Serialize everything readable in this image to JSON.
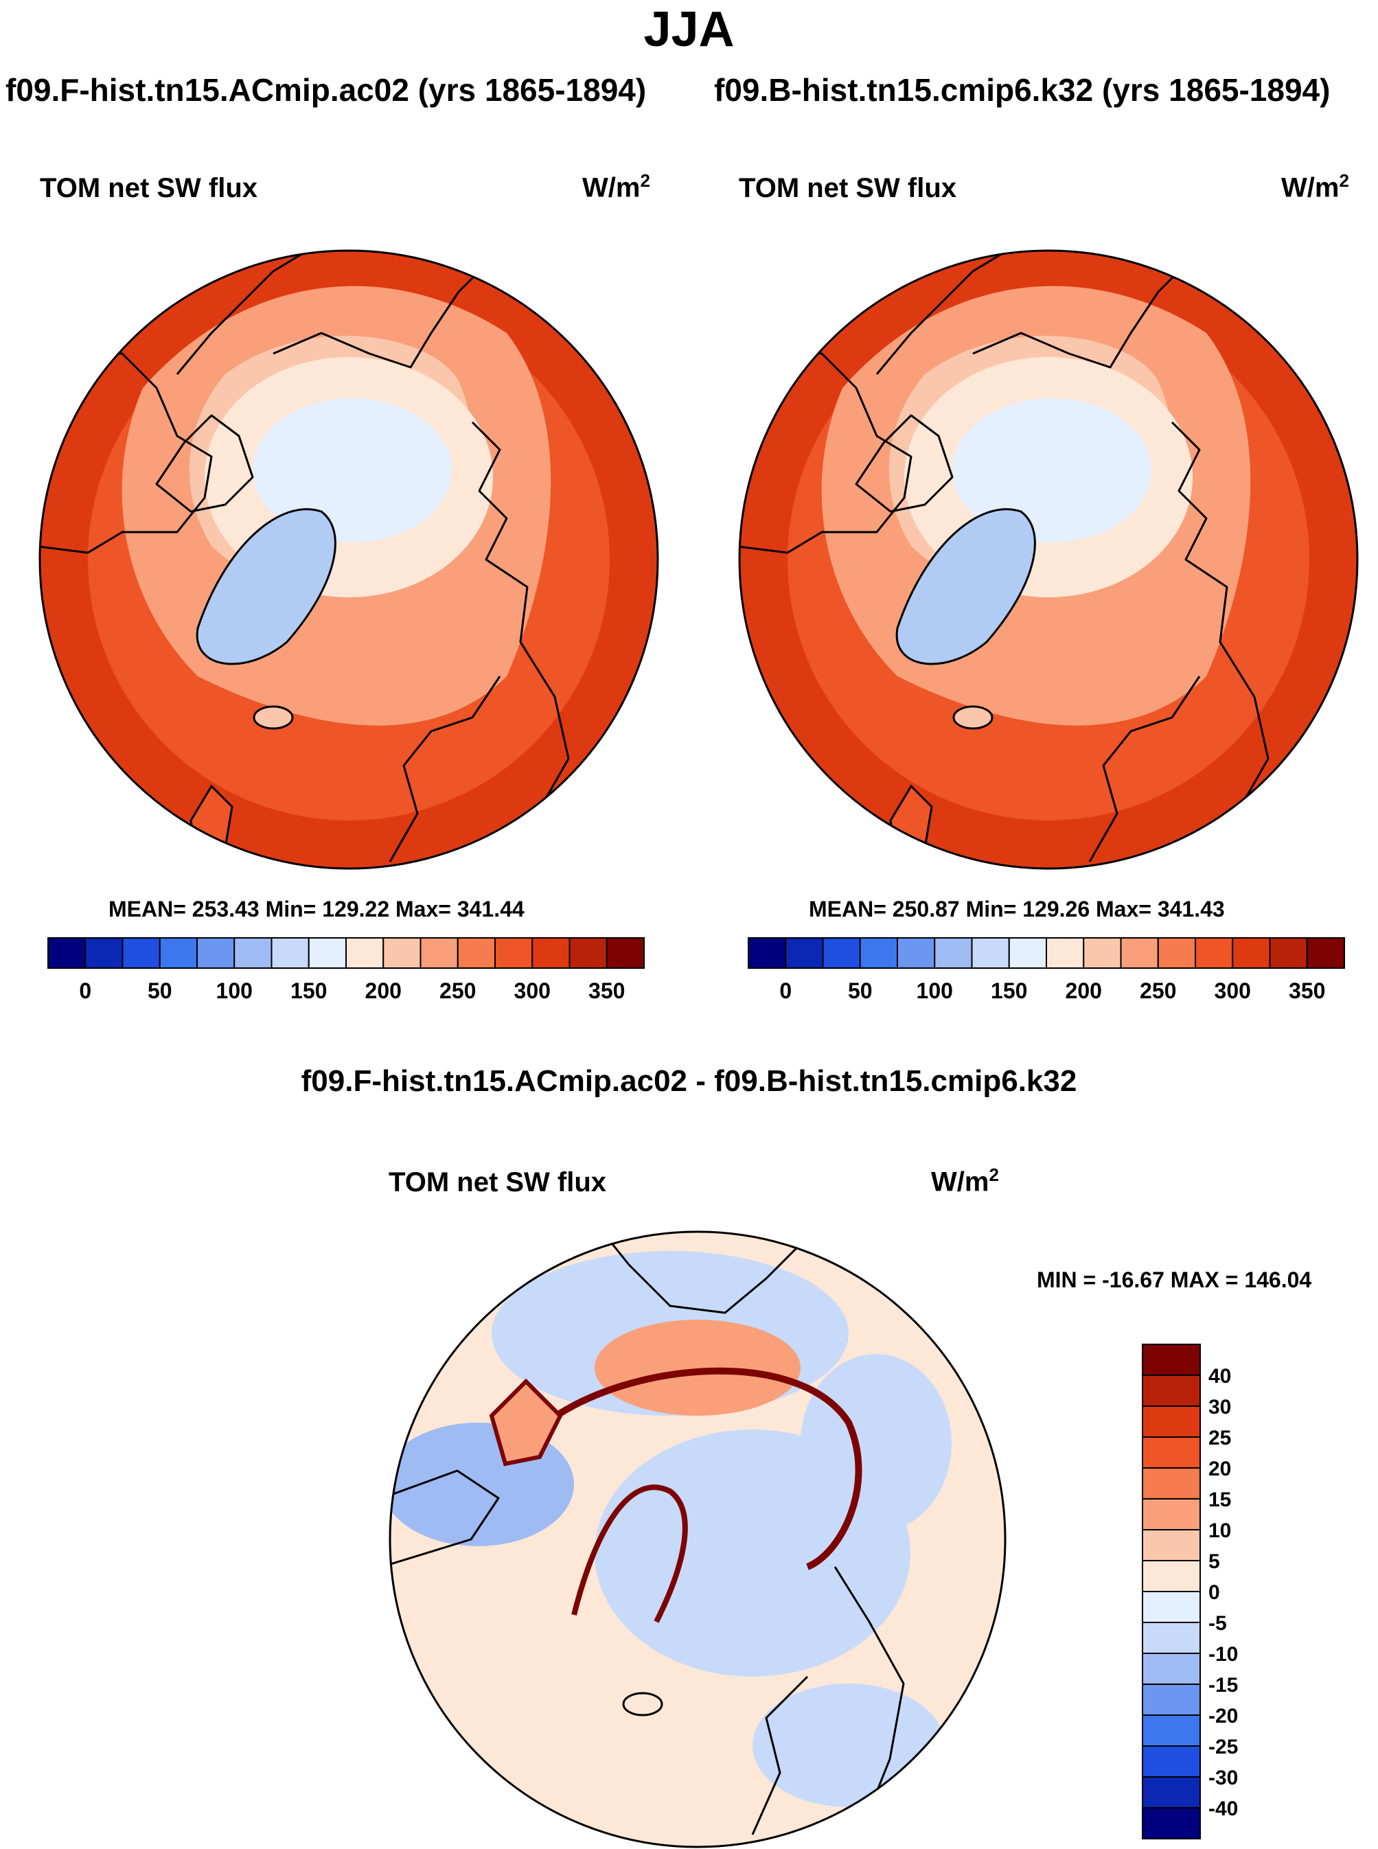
{
  "season": "JJA",
  "panels": [
    {
      "case": "f09.F-hist.tn15.ACmip.ac02 (yrs 1865-1894)",
      "variable": "TOM net SW flux",
      "units": "W/m",
      "units_sup": "2",
      "stats": "MEAN= 253.43  Min= 129.22  Max= 341.44"
    },
    {
      "case": "f09.B-hist.tn15.cmip6.k32 (yrs 1865-1894)",
      "variable": "TOM net SW flux",
      "units": "W/m",
      "units_sup": "2",
      "stats": "MEAN= 250.87  Min= 129.26  Max= 341.43"
    }
  ],
  "abs_colorbar": {
    "colors": [
      "#00007f",
      "#0a28b4",
      "#1f4fe0",
      "#3d77f0",
      "#6c97f0",
      "#9fbbf3",
      "#c8daf9",
      "#e4efff",
      "#fde8d8",
      "#fbc7ac",
      "#f9a07a",
      "#f67b4e",
      "#ee5527",
      "#de3a12",
      "#b82208",
      "#7d0303"
    ],
    "labels": [
      "0",
      "50",
      "100",
      "150",
      "200",
      "250",
      "300",
      "350"
    ]
  },
  "diff": {
    "title": "f09.F-hist.tn15.ACmip.ac02 - f09.B-hist.tn15.cmip6.k32",
    "variable": "TOM net SW flux",
    "units": "W/m",
    "units_sup": "2",
    "minmax": "MIN = -16.67 MAX = 146.04",
    "colorbar": {
      "colors": [
        "#7d0303",
        "#b82208",
        "#de3a12",
        "#ee5527",
        "#f67b4e",
        "#f9a07a",
        "#fbc7ac",
        "#fde8d8",
        "#e4efff",
        "#c8daf9",
        "#9fbbf3",
        "#6c97f0",
        "#3d77f0",
        "#1f4fe0",
        "#0a28b4",
        "#00007f"
      ],
      "labels": [
        "40",
        "30",
        "25",
        "20",
        "15",
        "10",
        "5",
        "0",
        "-5",
        "-10",
        "-15",
        "-20",
        "-25",
        "-30",
        "-40"
      ]
    }
  },
  "map_colors": {
    "tropics": "#de3a12",
    "midlat": "#ee5527",
    "subarctic": "#f9a07a",
    "arctic_land": "#fbc7ac",
    "arctic_ring": "#fde8d8",
    "pole": "#e4efff",
    "greenland": "#b0ccf5",
    "diff_base": "#fde8d8",
    "diff_blue": "#c8daf9",
    "diff_blue2": "#9fbbf3",
    "diff_red": "#f9a07a",
    "diff_edge": "#7d0303",
    "coast": "#000000"
  }
}
